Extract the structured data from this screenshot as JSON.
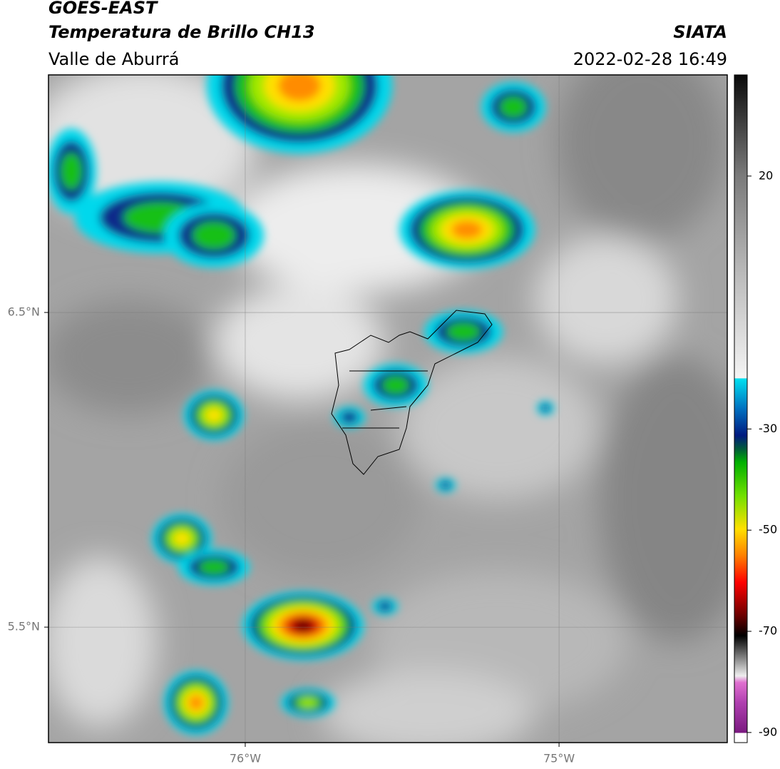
{
  "header": {
    "title": "GOES-EAST",
    "subtitle": "Temperatura de Brillo CH13",
    "region": "Valle de Aburrá",
    "source": "SIATA",
    "datetime": "2022-02-28 16:49"
  },
  "map": {
    "xlim": [
      -76.627,
      -74.464
    ],
    "ylim": [
      5.133,
      7.255
    ],
    "xticks": [
      {
        "value": -76,
        "label": "76°W"
      },
      {
        "value": -75,
        "label": "75°W"
      }
    ],
    "yticks": [
      {
        "value": 6.5,
        "label": "6.5°N"
      },
      {
        "value": 5.5,
        "label": "5.5°N"
      }
    ],
    "grid": true
  },
  "colorbar": {
    "lim": [
      -92,
      40
    ],
    "ticks": [
      20,
      -30,
      -50,
      -70,
      -90
    ]
  }
}
